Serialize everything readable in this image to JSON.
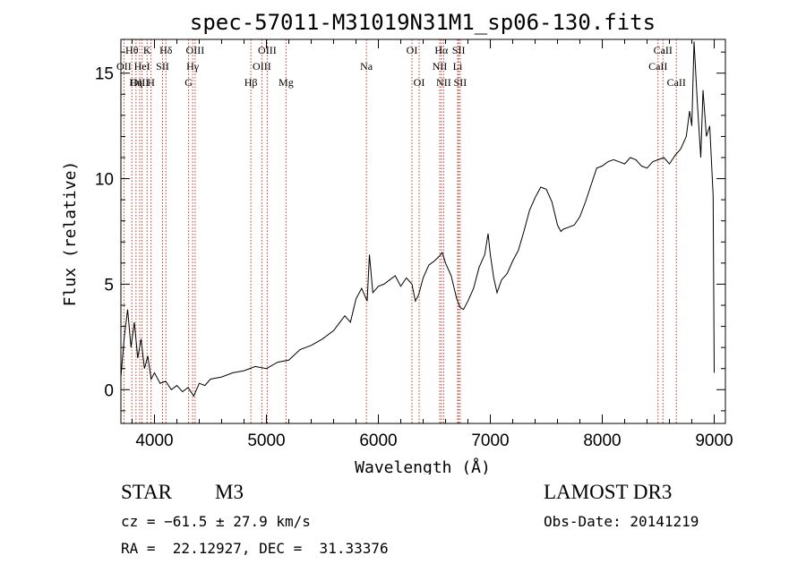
{
  "chart_data": {
    "type": "line",
    "title": "spec-57011-M31019N31M1_sp06-130.fits",
    "xlabel": "Wavelength (Å)",
    "ylabel": "Flux (relative)",
    "xlim": [
      3700,
      9100
    ],
    "ylim": [
      -1.6,
      16.6
    ],
    "xticks": [
      4000,
      5000,
      6000,
      7000,
      8000,
      9000
    ],
    "xtick_labels": [
      "4000",
      "5000",
      "6000",
      "7000",
      "8000",
      "9000"
    ],
    "yticks": [
      0,
      5,
      10,
      15
    ],
    "ytick_labels": [
      "0",
      "5",
      "10",
      "15"
    ],
    "series": [
      {
        "name": "flux",
        "x": [
          3700,
          3730,
          3760,
          3790,
          3820,
          3850,
          3880,
          3910,
          3940,
          3970,
          4000,
          4050,
          4100,
          4150,
          4200,
          4250,
          4300,
          4350,
          4400,
          4450,
          4500,
          4600,
          4700,
          4800,
          4900,
          5000,
          5100,
          5200,
          5300,
          5400,
          5500,
          5600,
          5700,
          5750,
          5800,
          5850,
          5900,
          5920,
          5950,
          6000,
          6050,
          6100,
          6150,
          6200,
          6250,
          6300,
          6330,
          6360,
          6400,
          6450,
          6500,
          6540,
          6570,
          6600,
          6650,
          6700,
          6730,
          6760,
          6800,
          6850,
          6900,
          6950,
          6980,
          7000,
          7030,
          7060,
          7100,
          7150,
          7200,
          7250,
          7300,
          7350,
          7400,
          7450,
          7500,
          7550,
          7600,
          7630,
          7650,
          7700,
          7750,
          7800,
          7850,
          7900,
          7950,
          8000,
          8050,
          8100,
          8150,
          8200,
          8250,
          8300,
          8350,
          8400,
          8450,
          8500,
          8550,
          8600,
          8650,
          8700,
          8750,
          8780,
          8800,
          8820,
          8850,
          8880,
          8900,
          8930,
          8960,
          8990,
          9000
        ],
        "y": [
          0.6,
          2.5,
          3.8,
          2.0,
          3.2,
          1.5,
          2.4,
          1.0,
          1.6,
          0.5,
          0.8,
          0.3,
          0.4,
          0.0,
          0.2,
          -0.1,
          0.1,
          -0.3,
          0.3,
          0.2,
          0.5,
          0.6,
          0.8,
          0.9,
          1.1,
          1.0,
          1.3,
          1.4,
          1.9,
          2.1,
          2.4,
          2.8,
          3.5,
          3.2,
          4.3,
          4.8,
          4.2,
          6.4,
          4.6,
          4.9,
          5.0,
          5.2,
          5.4,
          4.9,
          5.3,
          5.0,
          4.2,
          4.5,
          5.3,
          5.9,
          6.1,
          6.3,
          6.5,
          6.0,
          5.4,
          4.3,
          3.9,
          3.8,
          4.2,
          4.8,
          5.8,
          6.4,
          7.4,
          6.4,
          5.3,
          4.6,
          5.2,
          5.5,
          6.1,
          6.6,
          7.5,
          8.5,
          9.1,
          9.6,
          9.5,
          8.9,
          7.8,
          7.5,
          7.6,
          7.7,
          7.8,
          8.2,
          8.9,
          9.7,
          10.5,
          10.6,
          10.8,
          10.9,
          10.8,
          10.7,
          11.0,
          10.9,
          10.6,
          10.5,
          10.8,
          10.9,
          11.0,
          10.7,
          11.1,
          11.4,
          12.0,
          13.2,
          12.5,
          16.5,
          13.5,
          11.0,
          14.2,
          12.0,
          12.5,
          9.2,
          0.8
        ]
      }
    ],
    "lines": [
      {
        "label": "Hθ",
        "wl": 3798,
        "row": 0
      },
      {
        "label": "OII",
        "wl": 3727,
        "row": 1
      },
      {
        "label": "OIII",
        "wl": 3868,
        "row": 2
      },
      {
        "label": "K",
        "wl": 3934,
        "row": 0
      },
      {
        "label": "HeI",
        "wl": 3889,
        "row": 1
      },
      {
        "label": "Hη",
        "wl": 3835,
        "row": 2
      },
      {
        "label": "SII",
        "wl": 4072,
        "row": 1
      },
      {
        "label": "H",
        "wl": 3969,
        "row": 2
      },
      {
        "label": "Hδ",
        "wl": 4102,
        "row": 0
      },
      {
        "label": "OIII",
        "wl": 4363,
        "row": 0
      },
      {
        "label": "Hγ",
        "wl": 4341,
        "row": 1
      },
      {
        "label": "G",
        "wl": 4305,
        "row": 2
      },
      {
        "label": "Hβ",
        "wl": 4861,
        "row": 2
      },
      {
        "label": "OIII",
        "wl": 5007,
        "row": 0
      },
      {
        "label": "OIII",
        "wl": 4959,
        "row": 1
      },
      {
        "label": "Mg",
        "wl": 5175,
        "row": 2
      },
      {
        "label": "Na",
        "wl": 5893,
        "row": 1
      },
      {
        "label": "OI",
        "wl": 6300,
        "row": 0
      },
      {
        "label": "OI",
        "wl": 6364,
        "row": 2
      },
      {
        "label": "Hα",
        "wl": 6563,
        "row": 0
      },
      {
        "label": "NII",
        "wl": 6548,
        "row": 1
      },
      {
        "label": "NII",
        "wl": 6583,
        "row": 2
      },
      {
        "label": "SII",
        "wl": 6717,
        "row": 0
      },
      {
        "label": "Li",
        "wl": 6708,
        "row": 1
      },
      {
        "label": "SII",
        "wl": 6731,
        "row": 2
      },
      {
        "label": "CaII",
        "wl": 8542,
        "row": 0
      },
      {
        "label": "CaII",
        "wl": 8498,
        "row": 1
      },
      {
        "label": "CaII",
        "wl": 8662,
        "row": 2
      }
    ],
    "line_color": "#c0392b"
  },
  "info": {
    "object_class": "STAR",
    "subclass": "M3",
    "survey": "LAMOST DR3",
    "cz": "cz = −61.5 ± 27.9 km/s",
    "obs_date": "Obs-Date: 20141219",
    "coords": "RA =  22.12927, DEC =  31.33376"
  }
}
